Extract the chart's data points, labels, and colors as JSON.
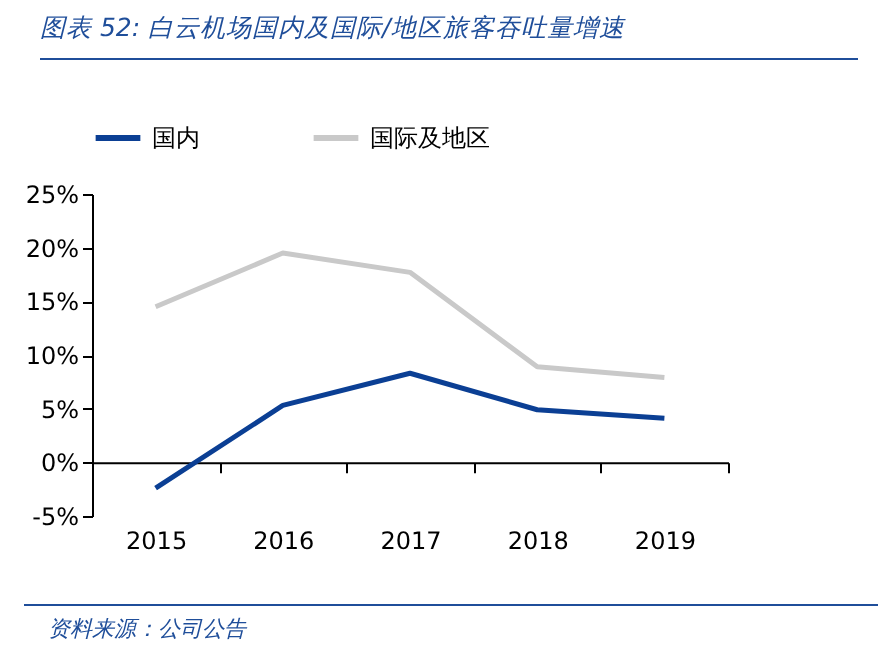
{
  "chart_data": {
    "type": "line",
    "title": "图表 52: 白云机场国内及国际/地区旅客吞吐量增速",
    "annotations": [
      "资料来源：公司公告"
    ],
    "categories": [
      "2015",
      "2016",
      "2017",
      "2018",
      "2019"
    ],
    "series": [
      {
        "name": "国内",
        "color": "#0b3f94",
        "values": [
          -2.4,
          5.3,
          8.3,
          4.9,
          4.1
        ]
      },
      {
        "name": "国际及地区",
        "color": "#c9c9c9",
        "values": [
          14.5,
          19.5,
          17.7,
          8.9,
          7.9
        ]
      }
    ],
    "ylim": [
      -5,
      25
    ],
    "yticks": [
      {
        "value": -5,
        "label": "-5%"
      },
      {
        "value": 0,
        "label": "0%"
      },
      {
        "value": 5,
        "label": "5%"
      },
      {
        "value": 10,
        "label": "10%"
      },
      {
        "value": 15,
        "label": "15%"
      },
      {
        "value": 20,
        "label": "20%"
      },
      {
        "value": 25,
        "label": "25%"
      }
    ],
    "legend": "top",
    "marker": "none",
    "line_style": "solid"
  }
}
